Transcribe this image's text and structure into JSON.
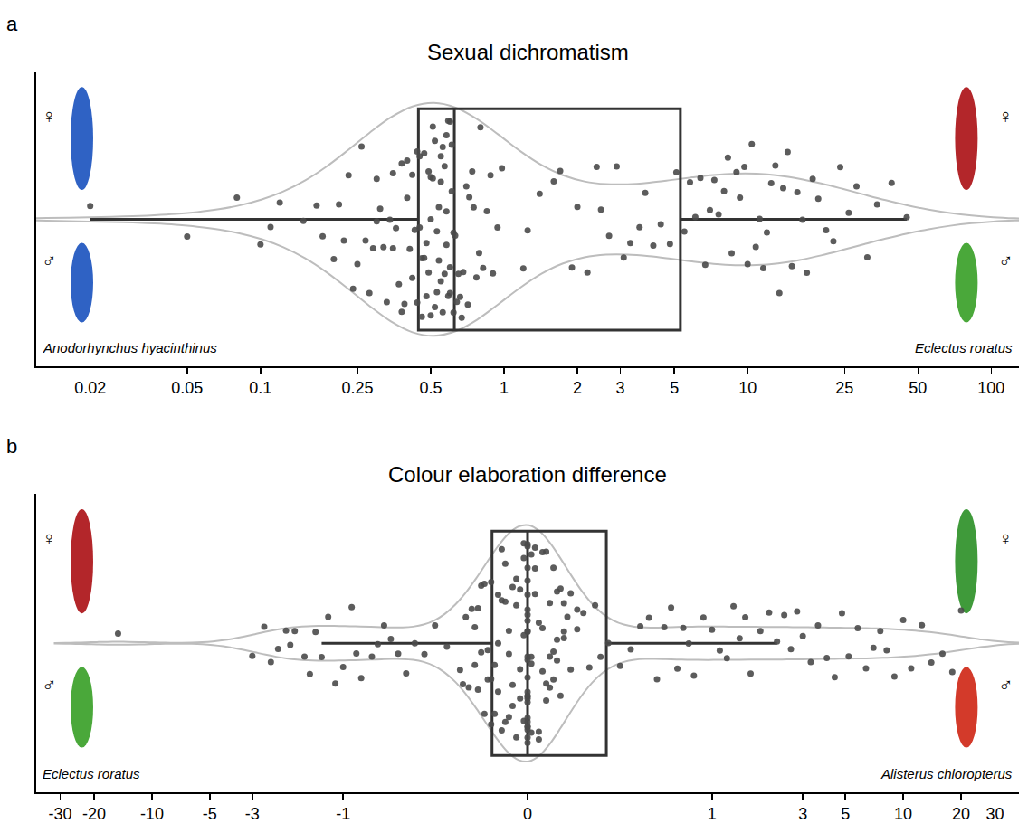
{
  "chart_data": [
    {
      "type": "violin",
      "panel_label": "a",
      "title": "Sexual dichromatism",
      "log": "x",
      "grid": false,
      "tick_labels": "x",
      "color": "#4a4a4a",
      "xlim": [
        0.012,
        130
      ],
      "xticks": [
        0.02,
        0.05,
        0.1,
        0.25,
        0.5,
        1,
        2,
        3,
        5,
        10,
        25,
        50,
        100
      ],
      "species_labels": [
        "Anodorhynchus hyacinthinus",
        "Eclectus roratus"
      ],
      "sex_labels": [
        "♀",
        "♂"
      ],
      "values": [
        0.02,
        0.05,
        0.08,
        0.1,
        0.11,
        0.12,
        0.15,
        0.17,
        0.18,
        0.2,
        0.21,
        0.22,
        0.23,
        0.24,
        0.25,
        0.26,
        0.27,
        0.28,
        0.29,
        0.3,
        0.3,
        0.31,
        0.32,
        0.33,
        0.34,
        0.35,
        0.35,
        0.36,
        0.37,
        0.38,
        0.38,
        0.39,
        0.4,
        0.4,
        0.41,
        0.42,
        0.42,
        0.43,
        0.44,
        0.44,
        0.45,
        0.45,
        0.46,
        0.46,
        0.47,
        0.47,
        0.48,
        0.48,
        0.49,
        0.49,
        0.5,
        0.5,
        0.5,
        0.51,
        0.51,
        0.52,
        0.52,
        0.53,
        0.53,
        0.54,
        0.54,
        0.55,
        0.55,
        0.55,
        0.56,
        0.56,
        0.57,
        0.57,
        0.58,
        0.58,
        0.58,
        0.59,
        0.59,
        0.6,
        0.6,
        0.6,
        0.61,
        0.61,
        0.62,
        0.62,
        0.63,
        0.64,
        0.65,
        0.66,
        0.67,
        0.68,
        0.7,
        0.71,
        0.72,
        0.74,
        0.75,
        0.77,
        0.79,
        0.8,
        0.82,
        0.85,
        0.88,
        0.9,
        0.94,
        0.98,
        1.2,
        1.25,
        1.4,
        1.6,
        1.7,
        1.9,
        2.0,
        2.2,
        2.4,
        2.5,
        2.7,
        2.9,
        3.1,
        3.3,
        3.6,
        3.8,
        4.1,
        4.4,
        4.8,
        5.1,
        5.5,
        5.8,
        6.1,
        6.4,
        6.7,
        7,
        7.3,
        7.6,
        8,
        8.3,
        8.6,
        9,
        9.3,
        9.7,
        10,
        10.4,
        10.8,
        11.2,
        11.6,
        12,
        12.5,
        13,
        13.5,
        14,
        14.6,
        15.2,
        16,
        16.8,
        17.5,
        18.5,
        19.5,
        21,
        22.5,
        24,
        26,
        28,
        31,
        34,
        39,
        45
      ]
    },
    {
      "type": "violin",
      "panel_label": "b",
      "title": "Colour elaboration difference",
      "log": "x",
      "grid": false,
      "tick_labels": "x",
      "color": "#4a4a4a",
      "xlim": [
        -40,
        40
      ],
      "xticks": [
        -30,
        -20,
        -10,
        -5,
        -3,
        -1,
        0,
        1,
        3,
        5,
        10,
        20,
        30
      ],
      "species_labels": [
        "Eclectus roratus",
        "Alisterus chloropterus"
      ],
      "sex_labels": [
        "♀",
        "♂"
      ],
      "values": [
        -15,
        -3,
        -2.6,
        -2.4,
        -2.2,
        -2.0,
        -1.9,
        -1.8,
        -1.6,
        -1.5,
        -1.4,
        -1.3,
        -1.2,
        -1.1,
        -1.0,
        -0.9,
        -0.85,
        -0.8,
        -0.7,
        -0.65,
        -0.6,
        -0.55,
        -0.5,
        -0.45,
        -0.4,
        -0.35,
        -0.3,
        -0.25,
        -0.2,
        -0.19,
        -0.18,
        -0.17,
        -0.16,
        -0.15,
        -0.15,
        -0.14,
        -0.14,
        -0.13,
        -0.13,
        -0.12,
        -0.12,
        -0.11,
        -0.11,
        -0.1,
        -0.1,
        -0.1,
        -0.09,
        -0.09,
        -0.08,
        -0.08,
        -0.08,
        -0.07,
        -0.07,
        -0.07,
        -0.06,
        -0.06,
        -0.06,
        -0.05,
        -0.05,
        -0.05,
        -0.04,
        -0.04,
        -0.04,
        -0.03,
        -0.03,
        -0.03,
        -0.02,
        -0.02,
        -0.02,
        -0.01,
        -0.01,
        -0.01,
        -0.01,
        0,
        0,
        0,
        0,
        0,
        0,
        0,
        0,
        0,
        0,
        0,
        0,
        0,
        0,
        0,
        0,
        0,
        0,
        0,
        0,
        0,
        0,
        0,
        0,
        0,
        0.01,
        0.01,
        0.01,
        0.01,
        0.02,
        0.02,
        0.02,
        0.03,
        0.03,
        0.03,
        0.04,
        0.04,
        0.04,
        0.05,
        0.05,
        0.05,
        0.06,
        0.06,
        0.06,
        0.07,
        0.07,
        0.07,
        0.08,
        0.08,
        0.08,
        0.09,
        0.09,
        0.1,
        0.1,
        0.1,
        0.11,
        0.12,
        0.12,
        0.14,
        0.14,
        0.16,
        0.18,
        0.2,
        0.22,
        0.25,
        0.3,
        0.35,
        0.4,
        0.45,
        0.5,
        0.55,
        0.6,
        0.65,
        0.7,
        0.75,
        0.8,
        0.9,
        1.0,
        1.1,
        1.2,
        1.3,
        1.4,
        1.5,
        1.6,
        1.8,
        2.0,
        2.2,
        2.4,
        2.6,
        2.8,
        3.0,
        3.3,
        3.6,
        4.0,
        4.4,
        4.8,
        5.2,
        5.8,
        6.4,
        7,
        7.6,
        8.2,
        9,
        10,
        11,
        12.5,
        14,
        16,
        18,
        20
      ]
    }
  ]
}
